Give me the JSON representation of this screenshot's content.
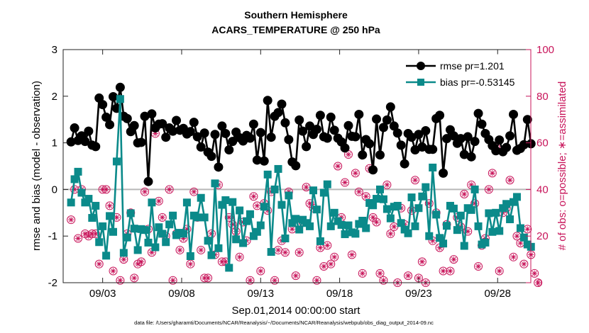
{
  "chart_data": {
    "type": "line",
    "title": "Southern Hemisphere",
    "subtitle": "ACARS_TEMPERATURE @ 250 hPa",
    "xlabel": "Sep.01,2014 00:00:00 start",
    "ylabel_left": "rmse and bias (model - observation)",
    "ylabel_right": "# of obs: o=possible; ∗=assimilated",
    "footnote": "data file: /Users/gharamti/Documents/NCAR/Reanalysis/~/Documents/NCAR/Reanalysis/webpub/obs_diag_output_2014-09.nc",
    "xlim": [
      0.5,
      30.1
    ],
    "ylim_left": [
      -2,
      3
    ],
    "ylim_right": [
      0,
      100
    ],
    "x_ticks": [
      {
        "value": 3,
        "label": "09/03"
      },
      {
        "value": 8,
        "label": "09/08"
      },
      {
        "value": 13,
        "label": "09/13"
      },
      {
        "value": 18,
        "label": "09/18"
      },
      {
        "value": 23,
        "label": "09/23"
      },
      {
        "value": 28,
        "label": "09/28"
      }
    ],
    "y_ticks_left": [
      "-2",
      "-1",
      "0",
      "1",
      "2",
      "3"
    ],
    "y_ticks_right": [
      "0",
      "20",
      "40",
      "60",
      "80",
      "100"
    ],
    "series": [
      {
        "name": "rmse pr=1.201",
        "color": "#000000",
        "marker": "circle",
        "values": [
          1.02,
          1.32,
          1.05,
          1.15,
          1.03,
          1.25,
          0.95,
          0.92,
          1.96,
          1.82,
          1.55,
          1.39,
          1.99,
          1.74,
          2.19,
          1.57,
          1.52,
          1.24,
          1.37,
          1.0,
          1.01,
          1.57,
          0.17,
          1.62,
          1.32,
          1.4,
          1.41,
          1.12,
          1.32,
          1.25,
          1.48,
          1.27,
          1.31,
          1.19,
          1.24,
          1.44,
          1.13,
          0.91,
          1.21,
          0.8,
          0.71,
          1.18,
          0.48,
          1.36,
          1.2,
          0.85,
          1.03,
          1.23,
          1.11,
          1.04,
          1.16,
          1.1,
          1.4,
          0.63,
          1.22,
          0.61,
          1.91,
          1.12,
          1.57,
          1.65,
          1.83,
          1.43,
          1.07,
          0.59,
          0.51,
          1.49,
          1.25,
          0.92,
          1.36,
          1.18,
          1.29,
          1.59,
          1.13,
          1.1,
          1.55,
          1.27,
          1.1,
          1.02,
          0.89,
          1.37,
          1.14,
          1.13,
          1.61,
          0.74,
          1.07,
          0.98,
          0.42,
          1.51,
          0.74,
          1.33,
          1.49,
          1.77,
          1.36,
          1.21,
          0.95,
          0.55,
          1.2,
          1.12,
          0.85,
          1.18,
          0.91,
          1.26,
          0.86,
          0.86,
          1.52,
          1.59,
          0.35,
          1.09,
          1.28,
          1.15,
          0.99,
          1.09,
          0.75,
          1.13,
          0.7,
          1.03,
          1.63,
          1.4,
          1.2,
          1.07,
          0.94,
          0.83,
          1.06,
          0.81,
          0.9,
          1.15,
          1.61,
          0.84,
          0.88,
          0.96,
          1.5,
          0.98
        ]
      },
      {
        "name": "bias pr=-0.53145",
        "color": "#0b8a8a",
        "marker": "square",
        "values": [
          -0.28,
          0.22,
          0.38,
          -0.07,
          -0.28,
          -0.2,
          -0.61,
          -0.35,
          -1.13,
          -0.79,
          -1.42,
          -0.57,
          -0.91,
          0.6,
          1.94,
          -1.36,
          -1.03,
          -0.51,
          -0.84,
          -1.3,
          -0.85,
          -0.87,
          -1.14,
          -0.28,
          -1.24,
          -0.81,
          -0.95,
          -1.13,
          -0.75,
          -0.56,
          -0.98,
          -0.93,
          -0.95,
          -0.28,
          -1.43,
          -0.56,
          -0.6,
          -0.18,
          -0.6,
          -1.1,
          -1.41,
          0.13,
          -1.26,
          -0.33,
          -0.23,
          -1.68,
          -0.27,
          -1.07,
          -0.45,
          -1.15,
          -0.68,
          -0.53,
          -1.0,
          -0.91,
          -0.77,
          -0.37,
          0.32,
          -1.34,
          0.0,
          0.44,
          -0.33,
          -1.05,
          -0.13,
          -0.72,
          -0.63,
          -0.86,
          -0.65,
          -0.72,
          -0.79,
          -0.02,
          -0.43,
          -1.11,
          -0.07,
          0.11,
          -0.79,
          -0.5,
          -0.68,
          -0.76,
          -0.96,
          -0.77,
          -0.92,
          -0.95,
          -0.74,
          -0.67,
          -0.83,
          -0.29,
          -0.34,
          -0.2,
          0.0,
          -0.21,
          -0.42,
          -0.62,
          -0.37,
          -0.35,
          -0.72,
          -0.86,
          -0.94,
          -0.17,
          -0.79,
          -0.4,
          -0.15,
          0.05,
          -1.0,
          0.47,
          -0.54,
          -1.04,
          -1.16,
          -0.78,
          -0.35,
          -0.41,
          -0.87,
          -0.56,
          -1.21,
          -0.4,
          -0.44,
          0.0,
          -0.79,
          -1.18,
          -1.14,
          -0.51,
          -0.91,
          -0.5,
          -0.89,
          -0.4,
          -0.31,
          -0.64,
          -0.27,
          -0.16,
          -0.83,
          -1.03,
          -1.18,
          -1.23
        ]
      }
    ],
    "obs_counts": {
      "possible": [
        27,
        40,
        19,
        40,
        21,
        20,
        21,
        21,
        8,
        40,
        40,
        33,
        5,
        28,
        1,
        10,
        21,
        30,
        2,
        8,
        9,
        39,
        23,
        13,
        64,
        35,
        28,
        20,
        40,
        1,
        21,
        14,
        19,
        23,
        8,
        39,
        28,
        14,
        2,
        2,
        21,
        12,
        42,
        9,
        9,
        28,
        25,
        22,
        11,
        26,
        18,
        1,
        37,
        33,
        5,
        34,
        31,
        39,
        1,
        14,
        18,
        13,
        39,
        23,
        3,
        13,
        26,
        41,
        34,
        32,
        1,
        15,
        7,
        16,
        8,
        11,
        50,
        28,
        43,
        55,
        12,
        47,
        39,
        4,
        37,
        49,
        28,
        26,
        4,
        1,
        42,
        21,
        24,
        0,
        32,
        25,
        3,
        31,
        44,
        2,
        9,
        0,
        34,
        18,
        30,
        15,
        5,
        25,
        5,
        10,
        28,
        24,
        38,
        22,
        42,
        34,
        7,
        16,
        19,
        40,
        47,
        58,
        5,
        30,
        32,
        44,
        11,
        20,
        17,
        8,
        23,
        12,
        4,
        0
      ],
      "assimilated": [
        27,
        40,
        19,
        40,
        21,
        20,
        21,
        21,
        8,
        40,
        40,
        33,
        5,
        28,
        1,
        10,
        21,
        30,
        2,
        8,
        9,
        39,
        23,
        13,
        64,
        35,
        28,
        20,
        40,
        1,
        21,
        14,
        19,
        23,
        8,
        39,
        28,
        14,
        2,
        2,
        21,
        12,
        42,
        9,
        9,
        28,
        25,
        22,
        11,
        26,
        18,
        1,
        37,
        33,
        5,
        34,
        31,
        39,
        1,
        14,
        18,
        13,
        39,
        23,
        3,
        13,
        26,
        41,
        34,
        32,
        1,
        15,
        7,
        16,
        8,
        11,
        50,
        28,
        43,
        55,
        12,
        47,
        39,
        4,
        37,
        49,
        28,
        26,
        4,
        1,
        42,
        21,
        24,
        0,
        32,
        25,
        3,
        31,
        44,
        2,
        9,
        0,
        34,
        18,
        30,
        15,
        5,
        25,
        5,
        10,
        28,
        24,
        38,
        22,
        42,
        34,
        7,
        16,
        19,
        40,
        47,
        58,
        5,
        30,
        32,
        44,
        11,
        20,
        17,
        8,
        23,
        12,
        4,
        0
      ]
    },
    "legend": {
      "position": "top-right"
    },
    "grid": false
  },
  "colors": {
    "rmse": "#000000",
    "bias": "#0b8a8a",
    "obs": "#c8145a",
    "zero_line": "#b8b8b8"
  }
}
